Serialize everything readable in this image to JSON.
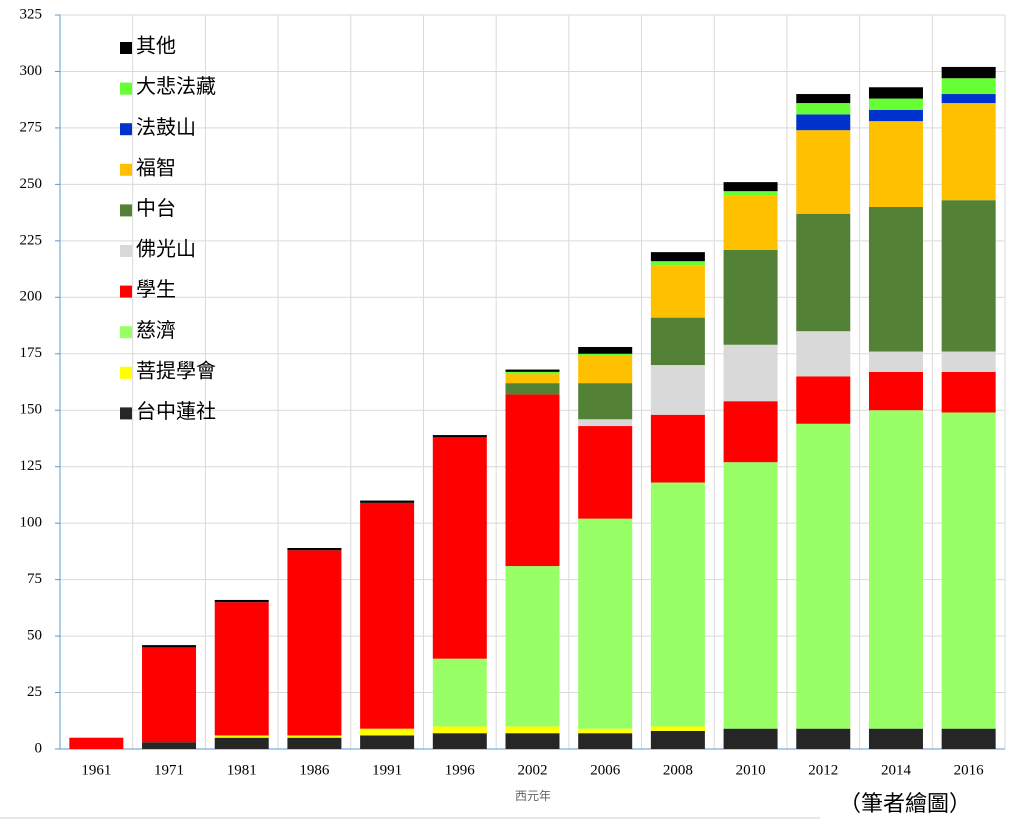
{
  "chart_data": {
    "type": "bar",
    "stacked": true,
    "categories": [
      "1961",
      "1971",
      "1981",
      "1986",
      "1991",
      "1996",
      "2002",
      "2006",
      "2008",
      "2010",
      "2012",
      "2014",
      "2016"
    ],
    "series": [
      {
        "name": "台中蓮社",
        "color": "#262626",
        "values": [
          0,
          3,
          5,
          5,
          6,
          7,
          7,
          7,
          8,
          9,
          9,
          9,
          9
        ]
      },
      {
        "name": "菩提學會",
        "color": "#ffff00",
        "values": [
          0,
          0,
          1,
          1,
          3,
          3,
          3,
          2,
          2,
          0,
          0,
          0,
          0
        ]
      },
      {
        "name": "慈濟",
        "color": "#99ff66",
        "values": [
          0,
          0,
          0,
          0,
          0,
          30,
          71,
          93,
          108,
          118,
          135,
          141,
          140
        ]
      },
      {
        "name": "學生",
        "color": "#ff0000",
        "values": [
          5,
          42,
          59,
          82,
          100,
          98,
          76,
          41,
          30,
          27,
          21,
          17,
          18
        ]
      },
      {
        "name": "佛光山",
        "color": "#d9d9d9",
        "values": [
          0,
          0,
          0,
          0,
          0,
          0,
          0,
          3,
          22,
          25,
          20,
          9,
          9
        ]
      },
      {
        "name": "中台",
        "color": "#538135",
        "values": [
          0,
          0,
          0,
          0,
          0,
          0,
          5,
          16,
          21,
          42,
          52,
          64,
          67
        ]
      },
      {
        "name": "福智",
        "color": "#ffc000",
        "values": [
          0,
          0,
          0,
          0,
          0,
          0,
          4,
          12,
          23,
          24,
          37,
          38,
          43
        ]
      },
      {
        "name": "法鼓山",
        "color": "#0033cc",
        "values": [
          0,
          0,
          0,
          0,
          0,
          0,
          0,
          0,
          0,
          0,
          7,
          5,
          4
        ]
      },
      {
        "name": "大悲法藏",
        "color": "#66ff33",
        "values": [
          0,
          0,
          0,
          0,
          0,
          0,
          1,
          1,
          2,
          2,
          5,
          5,
          7
        ]
      },
      {
        "name": "其他",
        "color": "#000000",
        "values": [
          0,
          1,
          1,
          1,
          1,
          1,
          1,
          3,
          4,
          4,
          4,
          5,
          5
        ]
      }
    ],
    "ylim": [
      0,
      325
    ],
    "yticks": [
      0,
      25,
      50,
      75,
      100,
      125,
      150,
      175,
      200,
      225,
      250,
      275,
      300,
      325
    ],
    "xlabel": "西元年",
    "note": "（筆者繪圖）",
    "grid": true,
    "legend": "upper left"
  }
}
